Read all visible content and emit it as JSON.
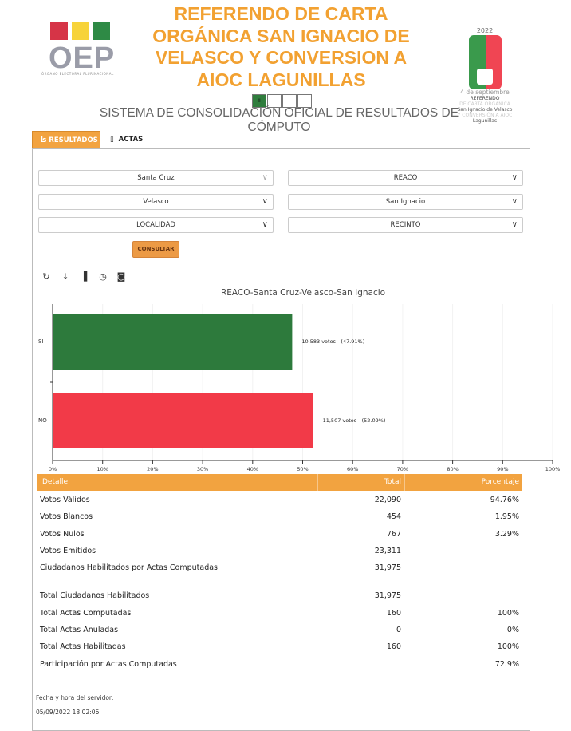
{
  "header": {
    "title_lines": [
      "REFERENDO DE CARTA",
      "ORGÁNICA SAN IGNACIO DE",
      "VELASCO Y CONVERSION A",
      "AIOC LAGUNILLAS"
    ],
    "subtitle": "SISTEMA DE CONSOLIDACIÓN OFICIAL DE RESULTADOS DE CÓMPUTO",
    "oep_logo": {
      "text": "OEP",
      "subtext": "ÓRGANO ELECTORAL PLURINACIONAL",
      "colors": [
        "#d63447",
        "#f7d33a",
        "#2e8a45"
      ]
    },
    "referendo_logo": {
      "year": "2022",
      "date": "4 de septiembre",
      "lines": [
        "REFERENDO",
        "DE CARTA ORGÁNICA",
        "San Ignacio de Velasco",
        "Y CONVERSIÓN A AIOC",
        "Lagunillas"
      ]
    },
    "steps": [
      "II",
      "",
      "",
      ""
    ]
  },
  "tabs": [
    {
      "label": "RESULTADOS",
      "icon": "chart-icon",
      "active": true
    },
    {
      "label": "ACTAS",
      "icon": "document-icon",
      "active": false
    }
  ],
  "filters": {
    "departamento": "Santa Cruz",
    "tipo": "REACO",
    "provincia": "Velasco",
    "municipio": "San Ignacio",
    "localidad": "LOCALIDAD",
    "recinto": "RECINTO",
    "consultar": "CONSULTAR"
  },
  "toolbar": [
    "refresh-icon",
    "download-icon",
    "bar-chart-icon",
    "clock-icon",
    "camera-icon"
  ],
  "chart_data": {
    "type": "bar",
    "orientation": "horizontal",
    "title": "REACO-Santa Cruz-Velasco-San Ignacio",
    "categories": [
      "SI",
      "NO"
    ],
    "values": [
      47.91,
      52.09
    ],
    "votes": [
      10583,
      11507
    ],
    "data_labels": [
      "10,583 votos - (47.91%)",
      "11,507 votos - (52.09%)"
    ],
    "colors": [
      "#2d7a3c",
      "#f23a48"
    ],
    "xlim": [
      0,
      100
    ],
    "xticks": [
      "0%",
      "10%",
      "20%",
      "30%",
      "40%",
      "50%",
      "60%",
      "70%",
      "80%",
      "90%",
      "100%"
    ],
    "grid": true
  },
  "table": {
    "headers": [
      "Detalle",
      "Total",
      "Porcentaje"
    ],
    "rows": [
      [
        "Votos Válidos",
        "22,090",
        "94.76%"
      ],
      [
        "Votos Blancos",
        "454",
        "1.95%"
      ],
      [
        "Votos Nulos",
        "767",
        "3.29%"
      ],
      [
        "Votos Emitidos",
        "23,311",
        ""
      ],
      [
        "Ciudadanos Habilitados por Actas Computadas",
        "31,975",
        ""
      ],
      [
        "Total Ciudadanos Habilitados",
        "31,975",
        ""
      ],
      [
        "Total Actas Computadas",
        "160",
        "100%"
      ],
      [
        "Total Actas Anuladas",
        "0",
        "0%"
      ],
      [
        "Total Actas Habilitadas",
        "160",
        "100%"
      ],
      [
        "Participación por Actas Computadas",
        "",
        "72.9%"
      ]
    ]
  },
  "footer": {
    "label": "Fecha y hora del servidor:",
    "datetime": "05/09/2022 18:02:06"
  }
}
